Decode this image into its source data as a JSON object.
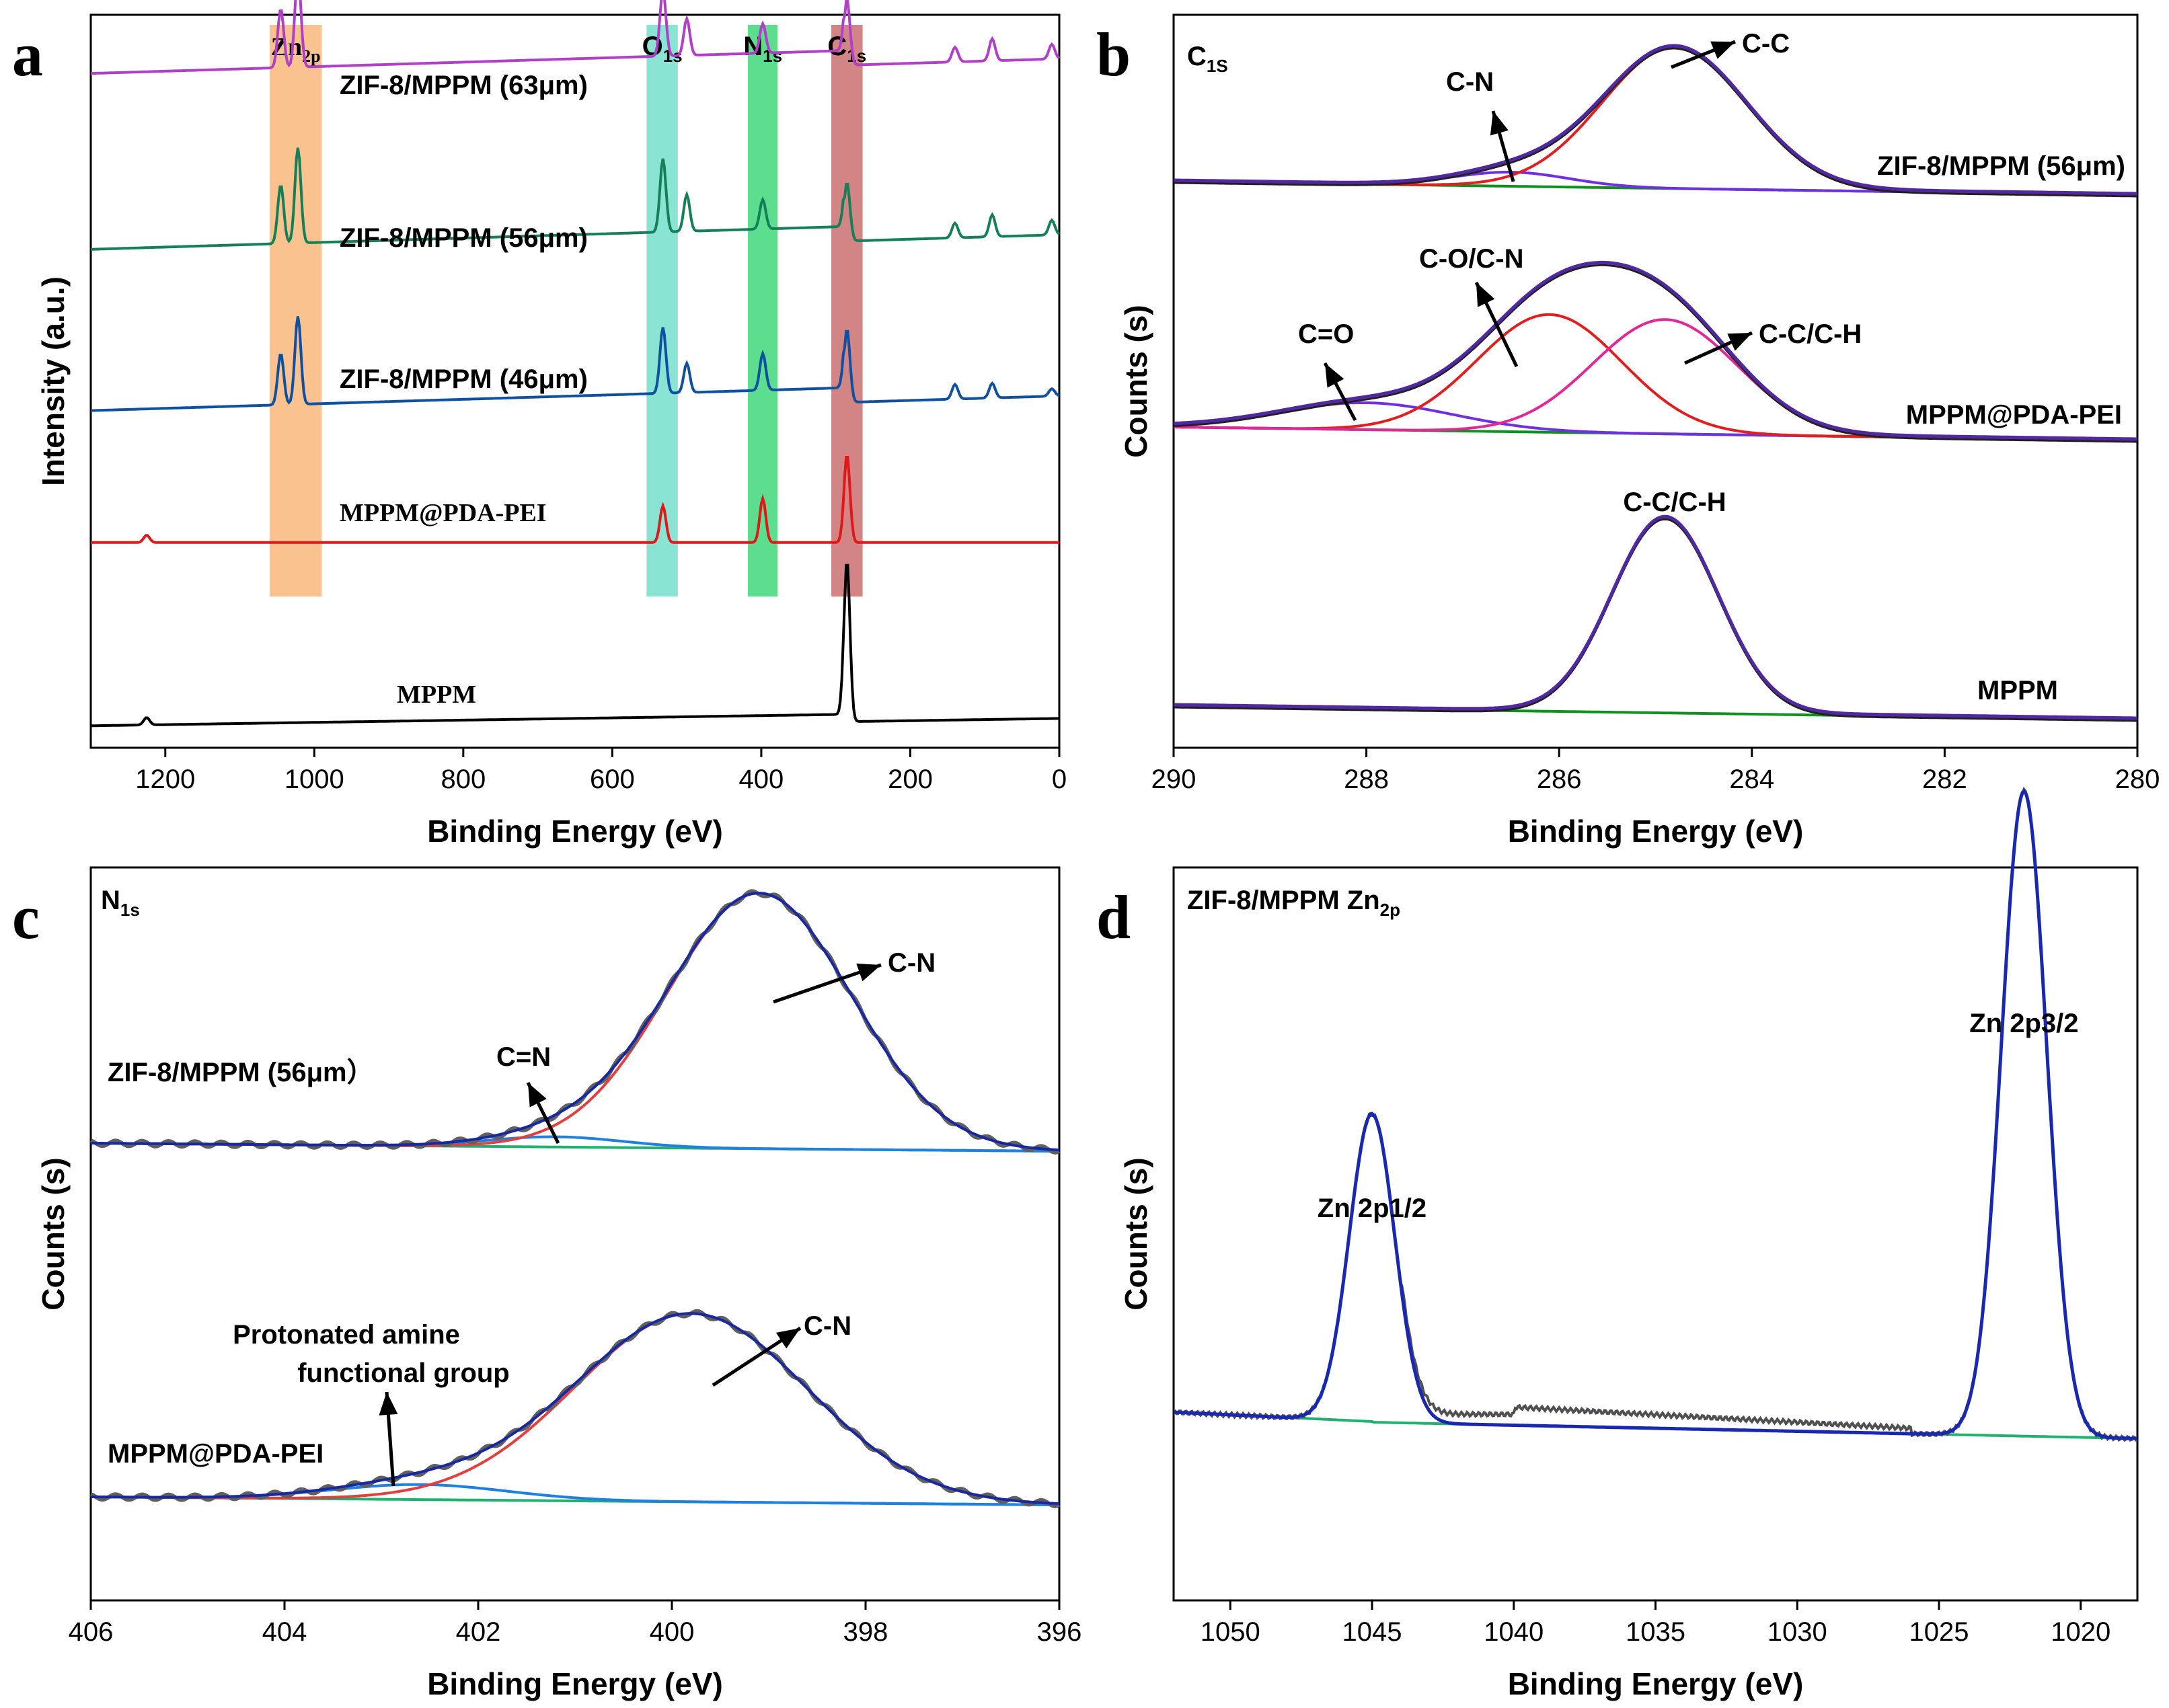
{
  "chart_data": [
    {
      "panel": "a",
      "type": "line",
      "xlabel": "Binding Energy (eV)",
      "ylabel": "Intensity (a.u.)",
      "xlim": [
        1300,
        0
      ],
      "xticks": [
        1200,
        1000,
        800,
        600,
        400,
        200,
        0
      ],
      "bands": [
        {
          "label": "Zn",
          "sub": "2p",
          "center": 1025,
          "width": 70,
          "color": "#f8a860"
        },
        {
          "label": "O",
          "sub": "1s",
          "center": 533,
          "width": 42,
          "color": "#58d8c0"
        },
        {
          "label": "N",
          "sub": "1s",
          "center": 398,
          "width": 40,
          "color": "#18d060"
        },
        {
          "label": "C",
          "sub": "1s",
          "center": 285,
          "width": 42,
          "color": "#c05050"
        }
      ],
      "series": [
        {
          "name": "ZIF-8/MPPM (63μm)",
          "color": "#b040c8",
          "baseline": 0.06,
          "slope": 0.02,
          "peaks": [
            [
              1045,
              0.08
            ],
            [
              1022,
              0.13
            ],
            [
              532,
              0.09
            ],
            [
              500,
              0.05
            ],
            [
              398,
              0.04
            ],
            [
              285,
              0.09
            ],
            [
              140,
              0.02
            ],
            [
              90,
              0.03
            ],
            [
              10,
              0.02
            ]
          ]
        },
        {
          "name": "ZIF-8/MPPM (56μm)",
          "color": "#158058",
          "baseline": 0.3,
          "slope": 0.02,
          "peaks": [
            [
              1045,
              0.08
            ],
            [
              1022,
              0.13
            ],
            [
              532,
              0.1
            ],
            [
              500,
              0.05
            ],
            [
              398,
              0.04
            ],
            [
              285,
              0.08
            ],
            [
              140,
              0.02
            ],
            [
              90,
              0.03
            ],
            [
              10,
              0.02
            ]
          ]
        },
        {
          "name": "ZIF-8/MPPM (46μm)",
          "color": "#1050a0",
          "baseline": 0.52,
          "slope": 0.02,
          "peaks": [
            [
              1045,
              0.07
            ],
            [
              1022,
              0.12
            ],
            [
              532,
              0.09
            ],
            [
              500,
              0.04
            ],
            [
              398,
              0.05
            ],
            [
              285,
              0.1
            ],
            [
              140,
              0.02
            ],
            [
              90,
              0.02
            ],
            [
              10,
              0.01
            ]
          ]
        },
        {
          "name": "MPPM@PDA-PEI",
          "color": "#e01818",
          "baseline": 0.72,
          "slope": 0.0,
          "peaks": [
            [
              1225,
              0.01
            ],
            [
              532,
              0.05
            ],
            [
              398,
              0.06
            ],
            [
              285,
              0.12
            ]
          ]
        },
        {
          "name": "MPPM",
          "color": "#000000",
          "baseline": 0.96,
          "slope": 0.01,
          "peaks": [
            [
              1225,
              0.01
            ],
            [
              285,
              0.22
            ]
          ]
        }
      ]
    },
    {
      "panel": "b",
      "type": "line",
      "title": "C",
      "title_sub": "1S",
      "xlabel": "Binding Energy (eV)",
      "ylabel": "Counts (s)",
      "xlim": [
        290,
        280
      ],
      "xticks": [
        290,
        288,
        286,
        284,
        282,
        280
      ],
      "groups": [
        {
          "name": "ZIF-8/MPPM (56μm)",
          "peaks": [
            {
              "label": "C-N",
              "center": 286.5,
              "height": 0.1,
              "color": "#7030e0"
            },
            {
              "label": "C-C",
              "center": 284.8,
              "height": 1.0,
              "color": "#e02020"
            }
          ]
        },
        {
          "name": "MPPM@PDA-PEI",
          "peaks": [
            {
              "label": "C=O",
              "center": 288.0,
              "height": 0.16,
              "color": "#7030e0"
            },
            {
              "label": "C-O/C-N",
              "center": 286.1,
              "height": 0.7,
              "color": "#e02020"
            },
            {
              "label": "C-C/C-H",
              "center": 284.9,
              "height": 0.68,
              "color": "#e02898"
            }
          ]
        },
        {
          "name": "MPPM",
          "peaks": [
            {
              "label": "C-C/C-H",
              "center": 284.9,
              "height": 1.0,
              "color": "#7030e0"
            }
          ]
        }
      ]
    },
    {
      "panel": "c",
      "type": "line",
      "title": "N",
      "title_sub": "1s",
      "xlabel": "Binding Energy (eV)",
      "ylabel": "Counts (s)",
      "xlim": [
        406,
        396
      ],
      "xticks": [
        406,
        404,
        402,
        400,
        398,
        396
      ],
      "groups": [
        {
          "name": "ZIF-8/MPPM (56μm）",
          "peaks": [
            {
              "label": "C=N",
              "center": 401.2,
              "height": 0.04,
              "color": "#2080e0"
            },
            {
              "label": "C-N",
              "center": 399.1,
              "height": 1.0,
              "color": "#e04040"
            }
          ]
        },
        {
          "name": "MPPM@PDA-PEI",
          "peaks": [
            {
              "label": "Protonated amine functional group",
              "center": 402.6,
              "height": 0.08,
              "color": "#2080e0"
            },
            {
              "label": "C-N",
              "center": 399.8,
              "height": 1.0,
              "color": "#e04040"
            }
          ]
        }
      ],
      "annotation_lines": [
        "Protonated amine",
        "functional group"
      ]
    },
    {
      "panel": "d",
      "type": "line",
      "title": "ZIF-8/MPPM Zn",
      "title_sub": "2p",
      "xlabel": "Binding Energy (eV)",
      "ylabel": "Counts (s)",
      "xlim": [
        1052,
        1018
      ],
      "xticks": [
        1050,
        1045,
        1040,
        1035,
        1030,
        1025,
        1020
      ],
      "peaks": [
        {
          "label": "Zn 2p1/2",
          "center": 1045.0,
          "height": 0.42
        },
        {
          "label": "Zn 2p3/2",
          "center": 1022.0,
          "height": 0.88
        }
      ]
    }
  ]
}
